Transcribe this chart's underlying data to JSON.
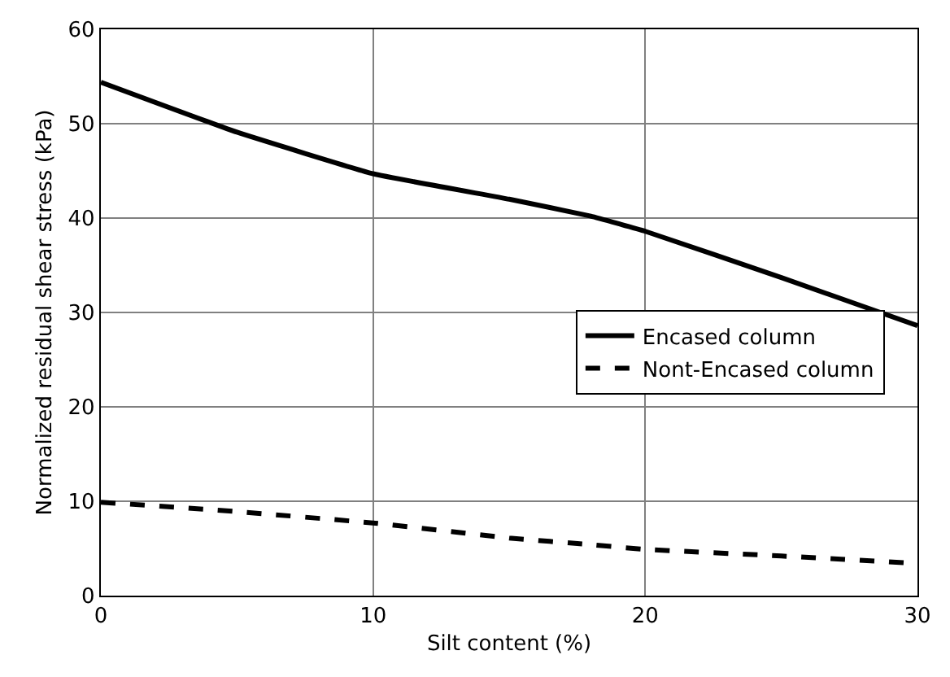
{
  "chart_data": {
    "type": "line",
    "xlabel": "Silt content (%)",
    "ylabel": "Normalized residual shear stress (kPa)",
    "x": [
      0,
      5,
      10,
      15,
      18,
      20,
      25,
      30
    ],
    "series": [
      {
        "name": "Encased column",
        "color": "#000000",
        "line_style": "solid",
        "values": [
          54.4,
          49.1,
          44.7,
          42.0,
          40.2,
          38.6,
          33.7,
          28.6
        ]
      },
      {
        "name": "Nont-Encased column",
        "color": "#000000",
        "line_style": "dashed",
        "values": [
          9.9,
          8.9,
          7.7,
          6.1,
          5.4,
          4.9,
          4.2,
          3.4
        ]
      }
    ],
    "xlim": [
      0,
      30
    ],
    "xticks": [
      0,
      10,
      20,
      30
    ],
    "ylim": [
      0,
      60
    ],
    "yticks": [
      0,
      10,
      20,
      30,
      40,
      50,
      60
    ],
    "grid": true,
    "legend": "center right",
    "marker": "none"
  }
}
